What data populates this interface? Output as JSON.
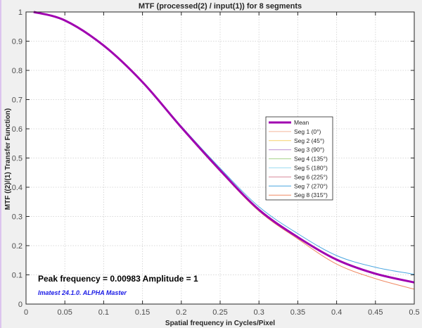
{
  "window": {
    "frame_color": "#dcc4ee"
  },
  "chart_data": {
    "type": "line",
    "title": "MTF (processed(2) / input(1)) for 8 segments",
    "xlabel": "Spatial frequency in Cycles/Pixel",
    "ylabel": "MTF  ((2)/(1) Transfer Function)",
    "xlim": [
      0,
      0.5
    ],
    "ylim": [
      0,
      1
    ],
    "xticks": [
      "0",
      "0.05",
      "0.1",
      "0.15",
      "0.2",
      "0.25",
      "0.3",
      "0.35",
      "0.4",
      "0.45",
      "0.5"
    ],
    "yticks": [
      "0",
      "0.1",
      "0.2",
      "0.3",
      "0.4",
      "0.5",
      "0.6",
      "0.7",
      "0.8",
      "0.9",
      "1"
    ],
    "grid": true,
    "legend_position": "right-center",
    "x": [
      0.00983,
      0.05,
      0.1,
      0.15,
      0.2,
      0.25,
      0.3,
      0.35,
      0.4,
      0.45,
      0.5
    ],
    "series": [
      {
        "name": "Mean",
        "color": "#a000b0",
        "width": 3,
        "values": [
          1.0,
          0.971,
          0.885,
          0.76,
          0.605,
          0.458,
          0.323,
          0.229,
          0.152,
          0.104,
          0.074
        ]
      },
      {
        "name": "Seg 1 (0°)",
        "color": "#f4b89a",
        "width": 1,
        "values": [
          1.0,
          0.971,
          0.885,
          0.76,
          0.604,
          0.456,
          0.321,
          0.227,
          0.15,
          0.102,
          0.072
        ]
      },
      {
        "name": "Seg 2 (45°)",
        "color": "#f7d26a",
        "width": 1,
        "values": [
          1.0,
          0.971,
          0.885,
          0.76,
          0.604,
          0.457,
          0.322,
          0.228,
          0.151,
          0.103,
          0.073
        ]
      },
      {
        "name": "Seg 3 (90°)",
        "color": "#b98bd0",
        "width": 1,
        "values": [
          1.0,
          0.971,
          0.885,
          0.76,
          0.605,
          0.458,
          0.323,
          0.229,
          0.152,
          0.104,
          0.074
        ]
      },
      {
        "name": "Seg 4 (135°)",
        "color": "#a6d38a",
        "width": 1,
        "values": [
          1.0,
          0.971,
          0.885,
          0.76,
          0.605,
          0.458,
          0.323,
          0.229,
          0.152,
          0.104,
          0.074
        ]
      },
      {
        "name": "Seg 5 (180°)",
        "color": "#9fdcf2",
        "width": 1,
        "values": [
          1.0,
          0.971,
          0.885,
          0.76,
          0.605,
          0.459,
          0.325,
          0.231,
          0.154,
          0.106,
          0.076
        ]
      },
      {
        "name": "Seg 6 (225°)",
        "color": "#d88a9c",
        "width": 1,
        "values": [
          1.0,
          0.971,
          0.885,
          0.76,
          0.605,
          0.458,
          0.323,
          0.229,
          0.152,
          0.104,
          0.074
        ]
      },
      {
        "name": "Seg 7 (270°)",
        "color": "#4aa6e0",
        "width": 1,
        "values": [
          1.0,
          0.971,
          0.886,
          0.762,
          0.609,
          0.465,
          0.333,
          0.241,
          0.166,
          0.126,
          0.102
        ]
      },
      {
        "name": "Seg 8 (315°)",
        "color": "#f08a64",
        "width": 1,
        "values": [
          1.0,
          0.971,
          0.884,
          0.758,
          0.602,
          0.454,
          0.318,
          0.223,
          0.137,
          0.087,
          0.051
        ]
      }
    ],
    "annotations": [
      {
        "text": "Peak frequency = 0.00983   Amplitude = 1"
      },
      {
        "text": "Imatest 24.1.0. ALPHA Master",
        "color": "#1a1ae6"
      }
    ]
  }
}
